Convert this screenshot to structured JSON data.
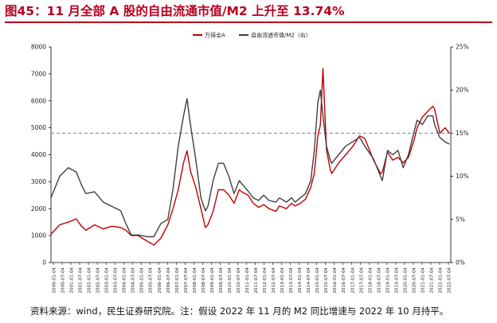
{
  "page": {
    "title": "图45：11 月全部 A 股的自由流通市值/M2 上升至 13.74%",
    "source": "资料来源：wind，民生证券研究院。注：假设 2022 年 11 月的 M2 同比增速与 2022 年 10 月持平。"
  },
  "colors": {
    "series1": "#c00000",
    "series2": "#404040",
    "title": "#b8001f",
    "reference": "#808080"
  },
  "chart_data": {
    "type": "line",
    "title": "",
    "x_ticks": [
      "2000-01-04",
      "2000-07-04",
      "2001-01-04",
      "2001-07-04",
      "2002-01-04",
      "2002-07-04",
      "2003-01-04",
      "2003-07-04",
      "2004-01-04",
      "2004-07-04",
      "2005-01-04",
      "2005-07-04",
      "2006-01-04",
      "2006-07-04",
      "2007-01-04",
      "2007-07-04",
      "2008-01-04",
      "2008-07-04",
      "2009-01-04",
      "2009-07-04",
      "2010-01-04",
      "2010-07-04",
      "2011-01-04",
      "2011-07-04",
      "2012-01-04",
      "2012-07-04",
      "2013-01-04",
      "2013-07-04",
      "2014-01-04",
      "2014-07-04",
      "2015-01-04",
      "2015-07-04",
      "2016-01-04",
      "2016-07-04",
      "2017-01-04",
      "2017-07-04",
      "2018-01-04",
      "2018-07-04",
      "2019-01-04",
      "2019-07-04",
      "2020-01-04",
      "2020-07-04",
      "2021-01-04",
      "2021-07-04",
      "2022-01-04",
      "2022-07-04"
    ],
    "y_left": {
      "min": 0,
      "max": 8000,
      "ticks": [
        "0",
        "1000",
        "2000",
        "3000",
        "4000",
        "5000",
        "6000",
        "7000",
        "8000"
      ]
    },
    "y_right": {
      "min": 0,
      "max": 25,
      "ticks": [
        "0%",
        "5%",
        "10%",
        "15%",
        "20%",
        "25%"
      ]
    },
    "reference_line_right": 15,
    "legend_position": "top-center",
    "series": [
      {
        "name": "万得全A",
        "axis": "left",
        "color": "#c00000",
        "x": [
          2000.0,
          2000.5,
          2001.0,
          2001.45,
          2001.75,
          2002.0,
          2002.5,
          2003.0,
          2003.5,
          2004.0,
          2004.3,
          2004.6,
          2005.0,
          2005.5,
          2005.9,
          2006.3,
          2006.7,
          2007.0,
          2007.3,
          2007.6,
          2007.8,
          2008.0,
          2008.3,
          2008.6,
          2008.85,
          2009.0,
          2009.3,
          2009.6,
          2009.9,
          2010.2,
          2010.5,
          2010.8,
          2011.0,
          2011.3,
          2011.6,
          2011.9,
          2012.2,
          2012.5,
          2012.9,
          2013.1,
          2013.5,
          2013.8,
          2014.0,
          2014.3,
          2014.6,
          2014.9,
          2015.1,
          2015.3,
          2015.45,
          2015.6,
          2015.8,
          2016.0,
          2016.1,
          2016.5,
          2016.9,
          2017.3,
          2017.7,
          2018.0,
          2018.5,
          2018.9,
          2019.0,
          2019.3,
          2019.6,
          2019.9,
          2020.2,
          2020.5,
          2020.8,
          2021.0,
          2021.3,
          2021.6,
          2021.9,
          2022.0,
          2022.3,
          2022.6,
          2022.85
        ],
        "y": [
          1050,
          1400,
          1500,
          1620,
          1350,
          1200,
          1400,
          1250,
          1350,
          1300,
          1200,
          1000,
          1000,
          800,
          650,
          900,
          1400,
          2000,
          2700,
          3700,
          4150,
          3400,
          2800,
          2000,
          1300,
          1400,
          1900,
          2700,
          2700,
          2500,
          2200,
          2700,
          2600,
          2500,
          2200,
          2050,
          2150,
          2000,
          1900,
          2100,
          2000,
          2200,
          2100,
          2200,
          2350,
          2800,
          3300,
          4700,
          5100,
          7200,
          4200,
          3500,
          3300,
          3700,
          4000,
          4300,
          4700,
          4600,
          3800,
          3300,
          3350,
          4100,
          3800,
          3900,
          3700,
          3900,
          4500,
          5000,
          5400,
          5600,
          5800,
          5700,
          4800,
          5000,
          4800
        ]
      },
      {
        "name": "自由流通市值/M2（右）",
        "axis": "right",
        "color": "#404040",
        "x": [
          2000.0,
          2000.5,
          2001.0,
          2001.45,
          2001.75,
          2002.0,
          2002.5,
          2003.0,
          2003.5,
          2004.0,
          2004.3,
          2004.6,
          2005.0,
          2005.5,
          2005.9,
          2006.3,
          2006.7,
          2007.0,
          2007.3,
          2007.6,
          2007.8,
          2008.0,
          2008.3,
          2008.6,
          2008.85,
          2009.0,
          2009.3,
          2009.6,
          2009.9,
          2010.2,
          2010.5,
          2010.8,
          2011.0,
          2011.3,
          2011.6,
          2011.9,
          2012.2,
          2012.5,
          2012.9,
          2013.1,
          2013.5,
          2013.8,
          2014.0,
          2014.3,
          2014.6,
          2014.9,
          2015.1,
          2015.3,
          2015.45,
          2015.6,
          2015.8,
          2016.0,
          2016.1,
          2016.5,
          2016.9,
          2017.3,
          2017.7,
          2018.0,
          2018.5,
          2018.9,
          2019.0,
          2019.3,
          2019.6,
          2019.9,
          2020.2,
          2020.5,
          2020.8,
          2021.0,
          2021.3,
          2021.6,
          2021.9,
          2022.0,
          2022.3,
          2022.6,
          2022.85
        ],
        "y": [
          7.5,
          10.0,
          11.0,
          10.5,
          9.0,
          8.0,
          8.2,
          7.0,
          6.5,
          6.0,
          4.5,
          3.2,
          3.2,
          3.0,
          3.0,
          4.5,
          5.0,
          8.5,
          13.5,
          17.0,
          19.0,
          16.0,
          12.0,
          7.5,
          6.0,
          6.5,
          9.5,
          11.5,
          11.5,
          10.0,
          8.0,
          9.5,
          9.0,
          8.3,
          7.5,
          7.2,
          7.8,
          7.2,
          7.0,
          7.5,
          7.0,
          7.5,
          7.0,
          7.5,
          8.0,
          9.5,
          13.0,
          18.5,
          20.0,
          17.0,
          13.5,
          12.0,
          11.5,
          12.5,
          13.5,
          14.0,
          14.5,
          13.5,
          12.0,
          10.0,
          9.5,
          13.0,
          12.5,
          13.0,
          11.0,
          12.5,
          15.0,
          16.5,
          16.0,
          17.0,
          17.0,
          16.0,
          14.5,
          14.0,
          13.74
        ]
      }
    ]
  }
}
